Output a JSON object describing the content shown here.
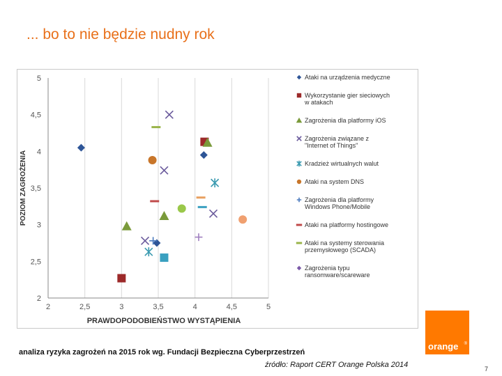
{
  "slide": {
    "title": "... bo to nie będzie nudny rok",
    "caption": "analiza ryzyka zagrożeń na 2015 rok wg. Fundacji Bezpieczna Cyberprzestrzeń",
    "source": "źródło: Raport CERT Orange Polska 2014",
    "page_number": "7",
    "logo_text": "orange",
    "logo_mark": "®",
    "brand_color": "#ff7900",
    "title_color": "#e8701a"
  },
  "chart_data": {
    "type": "scatter",
    "xlabel": "PRAWDOPODOBIEŃSTWO WYSTĄPIENIA",
    "ylabel": "POZIOM ZAGROŻENIA",
    "xlim": [
      2,
      5
    ],
    "ylim": [
      2,
      5
    ],
    "x_ticks": [
      "2",
      "2,5",
      "3",
      "3,5",
      "4",
      "4,5",
      "5"
    ],
    "y_ticks": [
      "2",
      "2,5",
      "3",
      "3,5",
      "4",
      "4,5",
      "5"
    ],
    "grid": "vertical",
    "legend_position": "right",
    "series": [
      {
        "name": "Ataki na urządzenia medyczne",
        "marker": "diamond",
        "color": "#2e5597",
        "points": [
          [
            2.45,
            4.05
          ],
          [
            3.48,
            2.75
          ],
          [
            4.12,
            3.95
          ]
        ]
      },
      {
        "name": "Wykorzystanie gier sieciowych w atakach",
        "marker": "square",
        "color": "#9c2a2a",
        "points": [
          [
            3.0,
            2.27
          ],
          [
            4.13,
            4.13
          ]
        ]
      },
      {
        "name": "Zagrożenia dla platformy iOS",
        "marker": "triangle",
        "color": "#7a9a3a",
        "points": [
          [
            3.07,
            2.98
          ],
          [
            3.58,
            3.12
          ],
          [
            4.17,
            4.12
          ]
        ]
      },
      {
        "name": "Zagrożenia związane z \"Internet of Things\"",
        "marker": "x",
        "color": "#6a5a9c",
        "points": [
          [
            3.32,
            2.78
          ],
          [
            3.58,
            3.74
          ],
          [
            3.65,
            4.5
          ],
          [
            4.25,
            3.15
          ]
        ]
      },
      {
        "name": "Kradzież wirtualnych walut",
        "marker": "asterisk",
        "color": "#3a9ab0",
        "points": [
          [
            3.37,
            2.63
          ],
          [
            4.27,
            3.57
          ]
        ]
      },
      {
        "name": "Ataki na system DNS",
        "marker": "circle",
        "color": "#c8762a",
        "points": [
          [
            3.42,
            3.88
          ]
        ]
      },
      {
        "name": "Zagrożenia dla platformy Windows Phone/Mobile",
        "marker": "plus",
        "color": "#4a7abe",
        "points": [
          [
            3.43,
            2.78
          ]
        ]
      },
      {
        "name": "Ataki na platformy hostingowe",
        "marker": "dash",
        "color": "#c04a4a",
        "points": [
          [
            3.45,
            3.32
          ]
        ]
      },
      {
        "name": "Ataki na systemy sterowania przemysłowego (SCADA)",
        "marker": "dash",
        "color": "#9ab44a",
        "points": [
          [
            3.47,
            4.33
          ]
        ]
      },
      {
        "name": "Zagrożenia typu ransomware/scareware",
        "marker": "diamond",
        "color": "#7a58a8",
        "points": []
      },
      {
        "name": "",
        "marker": "circle",
        "color": "#9ac84a",
        "points": [
          [
            3.82,
            3.22
          ]
        ]
      },
      {
        "name": "",
        "marker": "square",
        "color": "#3aa0c0",
        "points": [
          [
            3.58,
            2.55
          ]
        ]
      },
      {
        "name": "",
        "marker": "dash",
        "color": "#e8a060",
        "points": [
          [
            4.08,
            3.37
          ]
        ]
      },
      {
        "name": "",
        "marker": "dash",
        "color": "#3aa0c0",
        "points": [
          [
            4.1,
            3.24
          ]
        ]
      },
      {
        "name": "",
        "marker": "plus",
        "color": "#a080c0",
        "points": [
          [
            4.05,
            2.83
          ]
        ]
      },
      {
        "name": "",
        "marker": "circle",
        "color": "#f0a070",
        "points": [
          [
            4.65,
            3.07
          ]
        ]
      }
    ]
  }
}
